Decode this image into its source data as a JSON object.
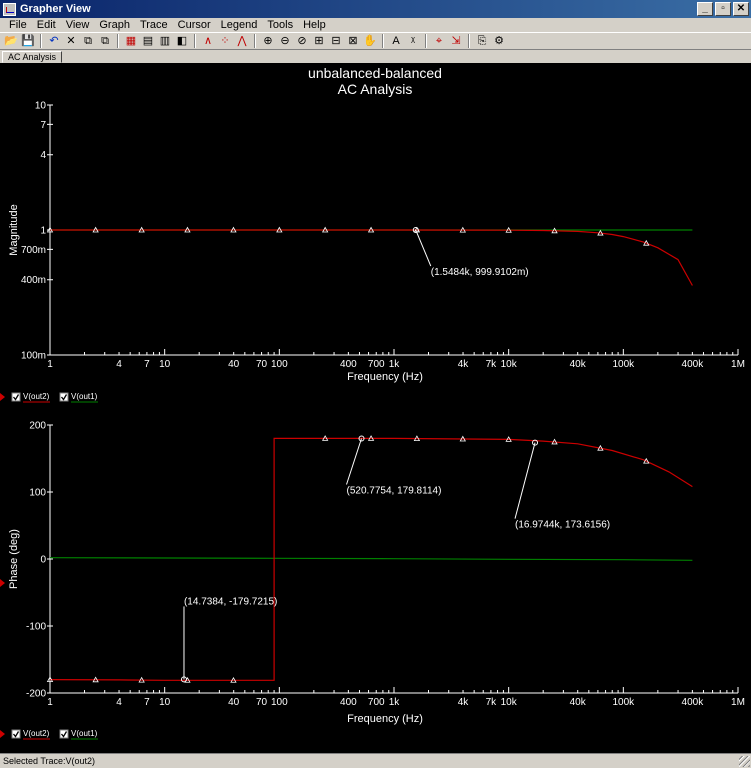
{
  "window": {
    "title": "Grapher View",
    "buttons": [
      "_",
      "▫",
      "✕"
    ]
  },
  "menu": [
    "File",
    "Edit",
    "View",
    "Graph",
    "Trace",
    "Cursor",
    "Legend",
    "Tools",
    "Help"
  ],
  "toolbar": {
    "icons": [
      {
        "name": "open-icon",
        "glyph": "📂"
      },
      {
        "name": "save-icon",
        "glyph": "💾"
      },
      {
        "sep": true
      },
      {
        "name": "undo-icon",
        "glyph": "↶",
        "color": "#0030c0"
      },
      {
        "name": "delete-icon",
        "glyph": "✕"
      },
      {
        "name": "copy-icon",
        "glyph": "⧉"
      },
      {
        "name": "paste-icon",
        "glyph": "⧉"
      },
      {
        "sep": true
      },
      {
        "name": "grid-icon",
        "glyph": "▦",
        "color": "#c00000"
      },
      {
        "name": "table-icon",
        "glyph": "▤"
      },
      {
        "name": "columns-icon",
        "glyph": "▥"
      },
      {
        "name": "layout-icon",
        "glyph": "◧"
      },
      {
        "sep": true
      },
      {
        "name": "line-trace-icon",
        "glyph": "∧",
        "color": "#c00000"
      },
      {
        "name": "points-trace-icon",
        "glyph": "⁘",
        "color": "#c00000"
      },
      {
        "name": "line-points-trace-icon",
        "glyph": "⋀",
        "color": "#c00000"
      },
      {
        "sep": true
      },
      {
        "name": "zoom-in-icon",
        "glyph": "⊕"
      },
      {
        "name": "zoom-out-icon",
        "glyph": "⊖"
      },
      {
        "name": "zoom-area-icon",
        "glyph": "⊘"
      },
      {
        "name": "zoom-x-icon",
        "glyph": "⊞"
      },
      {
        "name": "zoom-y-icon",
        "glyph": "⊟"
      },
      {
        "name": "zoom-full-icon",
        "glyph": "⊠"
      },
      {
        "name": "pan-hand-icon",
        "glyph": "✋"
      },
      {
        "sep": true
      },
      {
        "name": "text-icon",
        "glyph": "A"
      },
      {
        "name": "marker-icon",
        "glyph": "ᵡ"
      },
      {
        "sep": true
      },
      {
        "name": "cursor-icon",
        "glyph": "⌖",
        "color": "#c00000"
      },
      {
        "name": "select-trace-icon",
        "glyph": "⇲",
        "color": "#c00000"
      },
      {
        "sep": true
      },
      {
        "name": "export-icon",
        "glyph": "⎘"
      },
      {
        "name": "properties-icon",
        "glyph": "⚙"
      }
    ]
  },
  "tabs": [
    {
      "label": "AC Analysis"
    }
  ],
  "colors": {
    "plot_bg": "#000000",
    "axis": "#ffffff",
    "trace_out2": "#cc0000",
    "trace_out1": "#008000",
    "marker": "#ffffff"
  },
  "chart_data": [
    {
      "type": "line",
      "title": "unbalanced-balanced",
      "subtitle": "AC Analysis",
      "xlabel": "Frequency (Hz)",
      "ylabel": "Magnitude",
      "xscale": "log",
      "yscale": "log",
      "xlim": [
        1,
        1000000
      ],
      "ylim": [
        0.1,
        10
      ],
      "x_ticks": [
        "1",
        "4",
        "7",
        "10",
        "40",
        "70",
        "100",
        "400",
        "700",
        "1k",
        "4k",
        "7k",
        "10k",
        "40k",
        "100k",
        "400k",
        "1M"
      ],
      "y_ticks": [
        "10",
        "7",
        "4",
        "1",
        "700m",
        "400m",
        "100m"
      ],
      "grid": false,
      "series": [
        {
          "name": "V(out2)",
          "color": "#cc0000",
          "x": [
            1,
            10,
            100,
            1000,
            5000,
            10000,
            20000,
            40000,
            60000,
            80000,
            100000,
            150000,
            200000,
            300000,
            400000
          ],
          "y": [
            1.0,
            1.0,
            1.0,
            1.0,
            0.998,
            0.996,
            0.99,
            0.975,
            0.95,
            0.92,
            0.885,
            0.8,
            0.72,
            0.58,
            0.36
          ]
        },
        {
          "name": "V(out1)",
          "color": "#008000",
          "x": [
            1,
            400000
          ],
          "y": [
            1.0,
            1.0
          ]
        }
      ],
      "annotations": [
        {
          "label": "(1.5484k, 999.9102m)",
          "x": 1548.4,
          "y": 0.9999102
        }
      ],
      "legend": [
        {
          "name": "V(out2)",
          "checked": true
        },
        {
          "name": "V(out1)",
          "checked": true
        }
      ]
    },
    {
      "type": "line",
      "xlabel": "Frequency (Hz)",
      "ylabel": "Phase (deg)",
      "xscale": "log",
      "xlim": [
        1,
        1000000
      ],
      "ylim": [
        -200,
        200
      ],
      "x_ticks": [
        "1",
        "4",
        "7",
        "10",
        "40",
        "70",
        "100",
        "400",
        "700",
        "1k",
        "4k",
        "7k",
        "10k",
        "40k",
        "100k",
        "400k",
        "1M"
      ],
      "y_ticks": [
        "200",
        "100",
        "0",
        "-100",
        "-200"
      ],
      "grid": false,
      "series": [
        {
          "name": "V(out2)",
          "color": "#cc0000",
          "x": [
            1,
            4,
            10,
            40,
            90,
            90.01,
            100,
            1000,
            10000,
            20000,
            40000,
            80000,
            150000,
            250000,
            400000
          ],
          "y": [
            -180,
            -180.5,
            -181,
            -181,
            -181,
            180,
            180,
            180,
            178.5,
            176,
            172,
            162,
            148,
            130,
            108
          ]
        },
        {
          "name": "V(out1)",
          "color": "#008000",
          "x": [
            1,
            100,
            1000,
            10000,
            100000,
            400000
          ],
          "y": [
            2,
            1,
            0.5,
            -0.5,
            -1,
            -2
          ]
        }
      ],
      "annotations": [
        {
          "label": "(520.7754, 179.8114)",
          "x": 520.7754,
          "y": 179.8114
        },
        {
          "label": "(16.9744k, 173.6156)",
          "x": 16974.4,
          "y": 173.6156
        },
        {
          "label": "(14.7384, -179.7215)",
          "x": 14.7384,
          "y": -179.7215
        }
      ],
      "legend": [
        {
          "name": "V(out2)",
          "checked": true
        },
        {
          "name": "V(out1)",
          "checked": true
        }
      ]
    }
  ],
  "status": {
    "text": "Selected Trace:V(out2)"
  }
}
